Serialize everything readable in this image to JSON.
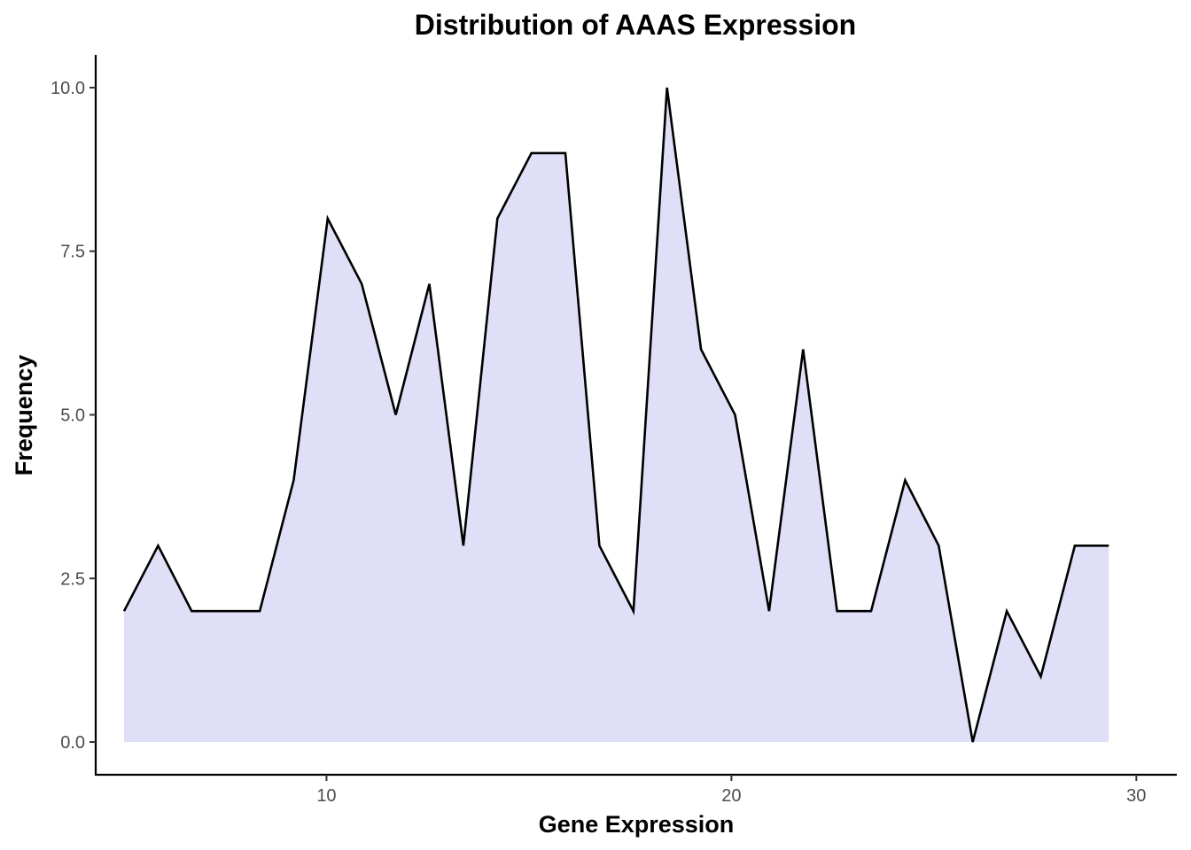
{
  "chart_data": {
    "type": "area",
    "title": "Distribution of AAAS Expression",
    "xlabel": "Gene Expression",
    "ylabel": "Frequency",
    "xlim": [
      4.3,
      31.0
    ],
    "ylim": [
      -0.5,
      10.5
    ],
    "xticks": [
      10,
      20,
      30
    ],
    "xtick_labels": [
      "10",
      "20",
      "30"
    ],
    "yticks": [
      0,
      2.5,
      5,
      7.5,
      10
    ],
    "ytick_labels": [
      "0.0",
      "2.5",
      "5.0",
      "7.5",
      "10.0"
    ],
    "grid": false,
    "legend": "none",
    "colors": {
      "fill": "#dfdff8",
      "line": "#000000"
    },
    "x": [
      5.0,
      5.84,
      6.67,
      7.51,
      8.35,
      9.19,
      10.03,
      10.87,
      11.71,
      12.54,
      13.38,
      14.22,
      15.06,
      15.9,
      16.74,
      17.58,
      18.41,
      19.25,
      20.09,
      20.93,
      21.77,
      22.61,
      23.45,
      24.29,
      25.12,
      25.96,
      26.8,
      27.64,
      28.48,
      29.32
    ],
    "values": [
      2,
      3,
      2,
      2,
      2,
      4,
      8,
      7,
      5,
      7,
      3,
      8,
      9,
      9,
      3,
      2,
      10,
      6,
      5,
      2,
      6,
      2,
      2,
      4,
      3,
      0,
      2,
      1,
      3,
      3
    ]
  }
}
